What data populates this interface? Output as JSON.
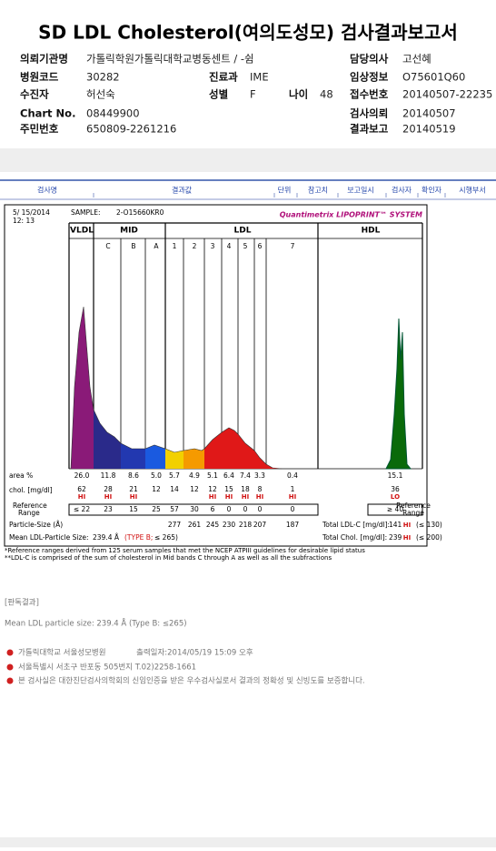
{
  "header": {
    "title": "SD LDL Cholesterol(여의도성모) 검사결과보고서"
  },
  "info": [
    {
      "label": "의뢰기관명",
      "value": "가톨릭학원가톨릭대학교병동센트 / -쉼"
    },
    {
      "label": "담당의사",
      "value": "고선혜"
    },
    {
      "label": "병원코드",
      "value": "30282"
    },
    {
      "label": "진료과",
      "value": "IME"
    },
    {
      "label": "임상정보",
      "value": "O75601Q60"
    },
    {
      "label": "수진자",
      "value": "허선숙"
    },
    {
      "label": "성별",
      "value": "F"
    },
    {
      "label": "나이",
      "value": "48"
    },
    {
      "label": "접수번호",
      "value": "20140507-22235"
    },
    {
      "label": "Chart No.",
      "value": "08449900"
    },
    {
      "label": "검사의뢰",
      "value": "20140507"
    },
    {
      "label": "주민번호",
      "value": "650809-2261216"
    },
    {
      "label": "결과보고",
      "value": "20140519"
    }
  ],
  "table_header": [
    "검사명",
    "결과값",
    "단위",
    "참고치",
    "보고일시",
    "검사자",
    "확인자",
    "시행부서"
  ],
  "report": {
    "date": "5/ 15/2014",
    "time": "12: 13",
    "sample_label": "SAMPLE:",
    "sample": "2-O15660KR0",
    "brand": "Quantimetrix LIPOPRINT™ SYSTEM",
    "bands": [
      "VLDL",
      "MID",
      "LDL",
      "HDL"
    ],
    "subfractions": [
      "C",
      "B",
      "A",
      "1",
      "2",
      "3",
      "4",
      "5",
      "6",
      "7"
    ],
    "area": {
      "label": "area %",
      "values": [
        "26.0",
        "11.8",
        "8.6",
        "5.0",
        "5.7",
        "4.9",
        "5.1",
        "6.4",
        "7.4",
        "3.3",
        "0.4",
        "15.1"
      ]
    },
    "chol": {
      "label": "chol. [mg/dl]",
      "values": [
        "62",
        "28",
        "21",
        "12",
        "14",
        "12",
        "12",
        "15",
        "18",
        "8",
        "1",
        "36"
      ],
      "flags": [
        "HI",
        "HI",
        "HI",
        null,
        null,
        null,
        "HI",
        "HI",
        "HI",
        "HI",
        "HI",
        "LO"
      ]
    },
    "reference": {
      "label": [
        "Reference",
        "Range"
      ],
      "values": [
        "≤ 22",
        "23",
        "15",
        "25",
        "57",
        "30",
        "6",
        "0",
        "0",
        "0",
        "0",
        "≥ 40"
      ]
    },
    "particle_size": {
      "label": "Particle-Size (Å)",
      "values": [
        null,
        null,
        null,
        null,
        "277",
        "261",
        "245",
        "230",
        "218",
        "207",
        "187",
        null
      ]
    },
    "total_ldl": {
      "label": "Total LDL-C [mg/dl]:",
      "value": "141",
      "flag": "HI",
      "ref": "(≤ 130)"
    },
    "total_chol": {
      "label": "Total Chol. [mg/dl]:",
      "value": "239",
      "flag": "HI",
      "ref": "(≤ 200)"
    },
    "mean_size": {
      "label": "Mean LDL-Particle Size:",
      "value": "239.4 Å",
      "type": "(TYPE B;",
      "ref": "≤ 265)"
    },
    "footnotes": [
      "*Reference ranges derived from 125 serum samples that met the NCEP ATPIII guidelines for desirable lipid status",
      "**LDL-C is comprised of the sum of cholesterol in Mid bands C through A as well as all the subfractions"
    ]
  },
  "interpretation": {
    "title": "[판독결과]",
    "text": "Mean LDL particle size: 239.4 Å (Type B: ≤265)"
  },
  "notes": {
    "hospital": "가톨릭대학교 서울성모병원",
    "printed": "출력일자:2014/05/19 15:09 오후",
    "address": "서울특별시 서초구 반포동 505번지 T.02)2258-1661",
    "certification": "본 검사실은 대한진단검사의학회의 신임인증을 받은 우수검사실로서 결과의 정확성 및 신빙도를 보증합니다."
  }
}
